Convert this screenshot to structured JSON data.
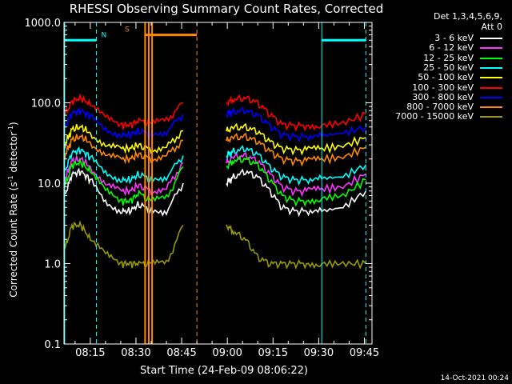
{
  "chart_data": {
    "type": "line",
    "title": "RHESSI Observing Summary Count Rates, Corrected",
    "xlabel": "Start Time (24-Feb-09 08:06:22)",
    "ylabel_main": "Corrected Count Rate (s",
    "ylabel_sup1": "-1",
    "ylabel_mid": " detector",
    "ylabel_sup2": "-1",
    "ylabel_end": ")",
    "yscale": "log",
    "ylim": [
      0.1,
      1000
    ],
    "xlim_minutes": [
      486.37,
      587.5
    ],
    "x_ticks": [
      {
        "t": 495,
        "label": "08:15"
      },
      {
        "t": 510,
        "label": "08:30"
      },
      {
        "t": 525,
        "label": "08:45"
      },
      {
        "t": 540,
        "label": "09:00"
      },
      {
        "t": 555,
        "label": "09:15"
      },
      {
        "t": 570,
        "label": "09:30"
      },
      {
        "t": 585,
        "label": "09:45"
      }
    ],
    "y_ticks": [
      {
        "v": 1000,
        "label": "1000.0"
      },
      {
        "v": 100,
        "label": "100.0"
      },
      {
        "v": 10,
        "label": "10.0"
      },
      {
        "v": 1,
        "label": "1.0"
      },
      {
        "v": 0.1,
        "label": "0.1"
      }
    ],
    "detectors": "Det 1,3,4,5,6,9,",
    "attenuator": "Att 0",
    "data_gap_minutes": [
      526,
      539.5
    ],
    "series": [
      {
        "name": "3 - 6 keV",
        "color": "#ffffff",
        "values": [
          7,
          13,
          14,
          11,
          6,
          4.5,
          4.5,
          5.5,
          4.5,
          4.5,
          10,
          12,
          14,
          12,
          8,
          5,
          4.5,
          4.5,
          4.5,
          5,
          8
        ]
      },
      {
        "name": "6 - 12 keV",
        "color": "#ff33ff",
        "values": [
          11,
          19,
          20,
          16,
          10,
          8,
          8,
          9.5,
          8,
          8.5,
          18,
          21,
          22,
          19,
          13,
          9,
          8,
          8,
          8.5,
          9,
          13
        ]
      },
      {
        "name": "12 - 25 keV",
        "color": "#00ff00",
        "values": [
          9,
          17,
          18,
          14,
          8,
          6,
          6,
          7.5,
          6,
          6.5,
          16,
          19,
          20,
          17,
          11,
          7,
          6,
          6,
          6.5,
          7,
          11
        ]
      },
      {
        "name": "25 - 50 keV",
        "color": "#00ffff",
        "values": [
          14,
          24,
          26,
          21,
          14,
          11,
          11,
          13,
          11,
          12,
          22,
          25,
          27,
          23,
          16,
          12,
          11,
          11,
          11.5,
          12,
          17
        ]
      },
      {
        "name": "50 - 100 keV",
        "color": "#ffff00",
        "values": [
          30,
          47,
          50,
          42,
          30,
          27,
          27,
          30,
          26,
          28,
          45,
          49,
          50,
          44,
          33,
          27,
          26,
          26,
          27,
          29,
          37
        ]
      },
      {
        "name": "100 - 300 keV",
        "color": "#ff0000",
        "values": [
          70,
          105,
          115,
          95,
          65,
          53,
          53,
          60,
          55,
          60,
          100,
          110,
          115,
          100,
          72,
          54,
          52,
          52,
          53,
          56,
          72
        ]
      },
      {
        "name": "300 - 800 keV",
        "color": "#0000ff",
        "values": [
          50,
          75,
          80,
          68,
          48,
          40,
          40,
          45,
          40,
          44,
          72,
          78,
          80,
          70,
          52,
          40,
          38,
          38,
          39,
          42,
          50
        ]
      },
      {
        "name": "800 - 7000 keV",
        "color": "#ff8800",
        "values": [
          22,
          35,
          38,
          32,
          23,
          20,
          20,
          23,
          20,
          22,
          34,
          37,
          38,
          33,
          25,
          20,
          19,
          19,
          20,
          21,
          28
        ]
      },
      {
        "name": "7000 - 15000 keV",
        "color": "#999900",
        "values": [
          1.5,
          3,
          3,
          2,
          1.3,
          1,
          1,
          1,
          1,
          1,
          3,
          2.5,
          2,
          1.2,
          1,
          1,
          1,
          1,
          1,
          1,
          1
        ]
      }
    ],
    "t_segments": [
      [
        486.6,
        489,
        492,
        495,
        500,
        505,
        508,
        511,
        515,
        520,
        525.5
      ],
      [
        539.7,
        542,
        546,
        550,
        554,
        558,
        562,
        566,
        571,
        578,
        585.5
      ]
    ],
    "flags": [
      {
        "label": "N",
        "color": "#00ffff",
        "t0": 486.6,
        "t1": 497,
        "v": 600
      },
      {
        "label": "",
        "color": "#00ffff",
        "t0": 571,
        "t1": 585.5,
        "v": 600
      },
      {
        "label": "S",
        "color": "#ff8800",
        "t0": 513,
        "t1": 530,
        "v": 700
      }
    ],
    "vlines_cyan": [
      486.6,
      497,
      571,
      585.5
    ],
    "vlines_orange": [
      513,
      514.2,
      515.3,
      530
    ],
    "footer_date": "14-Oct-2021 00:24"
  }
}
